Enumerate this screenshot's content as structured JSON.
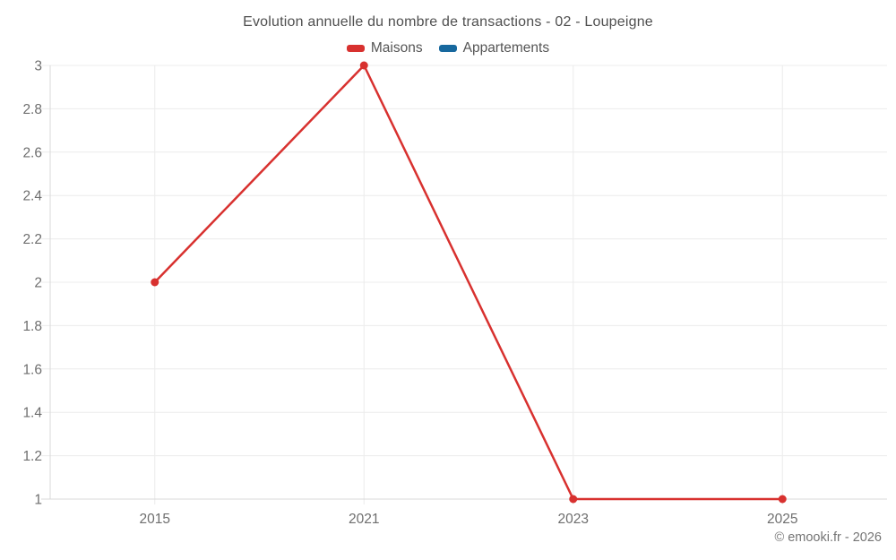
{
  "title": "Evolution annuelle du nombre de transactions - 02 - Loupeigne",
  "legend": [
    {
      "label": "Maisons",
      "color": "#d8312f"
    },
    {
      "label": "Appartements",
      "color": "#17689e"
    }
  ],
  "watermark": "© emooki.fr - 2026",
  "chart_data": {
    "type": "line",
    "title": "Evolution annuelle du nombre de transactions - 02 - Loupeigne",
    "categories": [
      "2015",
      "2021",
      "2023",
      "2025"
    ],
    "series": [
      {
        "name": "Maisons",
        "color": "#d8312f",
        "values": [
          2,
          3,
          1,
          1
        ]
      },
      {
        "name": "Appartements",
        "color": "#17689e",
        "values": []
      }
    ],
    "xlabel": "",
    "ylabel": "",
    "ylim": [
      1,
      3
    ],
    "yticks": [
      1,
      1.2,
      1.4,
      1.6,
      1.8,
      2,
      2.2,
      2.4,
      2.6,
      2.8,
      3
    ],
    "grid": true,
    "legend_position": "top",
    "marker": "circle"
  },
  "colors": {
    "grid": "#ececec",
    "axis": "#d8d8d8",
    "tick_text": "#6e6e6e",
    "title_text": "#4f4f4f",
    "legend_text": "#555555",
    "watermark_text": "#757575"
  }
}
